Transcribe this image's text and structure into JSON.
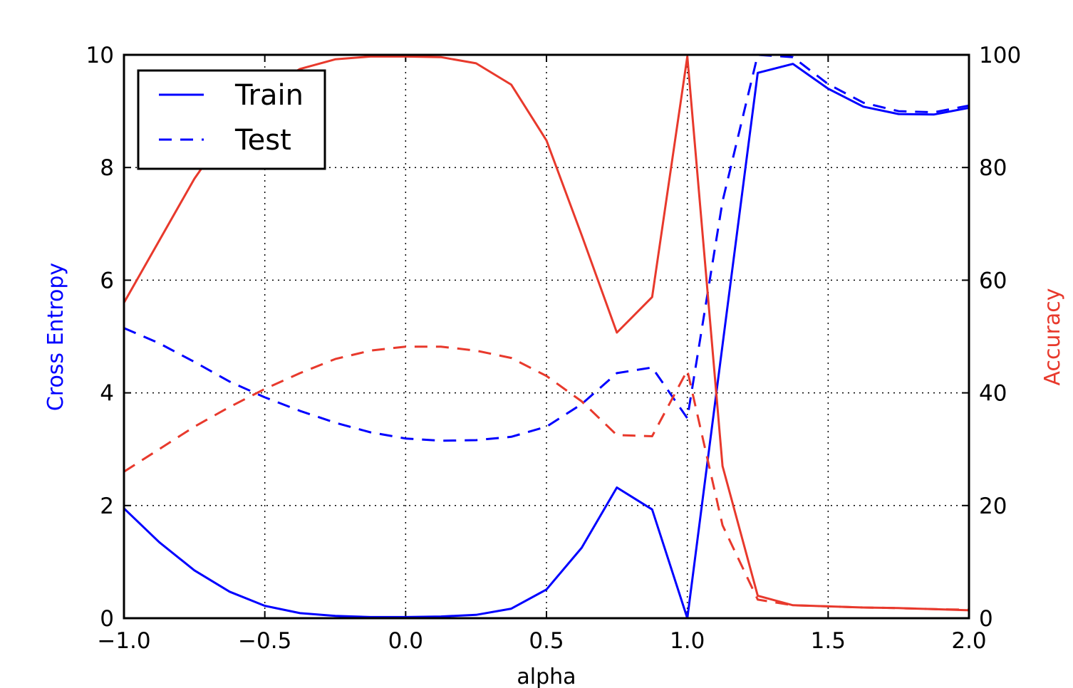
{
  "chart_data": {
    "type": "line",
    "xlabel": "alpha",
    "ylabel_left": "Cross Entropy",
    "ylabel_right": "Accuracy",
    "xlim": [
      -1.0,
      2.0
    ],
    "ylim_left": [
      0,
      10
    ],
    "ylim_right": [
      0,
      100
    ],
    "grid": true,
    "legend_position": "upper-left",
    "x_ticks": [
      "−1.0",
      "−0.5",
      "0.0",
      "0.5",
      "1.0",
      "1.5",
      "2.0"
    ],
    "x_tick_values": [
      -1.0,
      -0.5,
      0.0,
      0.5,
      1.0,
      1.5,
      2.0
    ],
    "y_left_ticks": [
      "0",
      "2",
      "4",
      "6",
      "8",
      "10"
    ],
    "y_left_tick_values": [
      0,
      2,
      4,
      6,
      8,
      10
    ],
    "y_right_ticks": [
      "0",
      "20",
      "40",
      "60",
      "80",
      "100"
    ],
    "y_right_tick_values": [
      0,
      20,
      40,
      60,
      80,
      100
    ],
    "x": [
      -1.0,
      -0.875,
      -0.75,
      -0.625,
      -0.5,
      -0.375,
      -0.25,
      -0.125,
      0.0,
      0.125,
      0.25,
      0.375,
      0.5,
      0.625,
      0.75,
      0.875,
      1.0,
      1.125,
      1.25,
      1.375,
      1.5,
      1.625,
      1.75,
      1.875,
      2.0
    ],
    "colors": {
      "loss": "#0000ff",
      "accuracy": "#e8392c"
    },
    "legend": [
      {
        "label": "Train",
        "style": "solid"
      },
      {
        "label": "Test",
        "style": "dashed"
      }
    ],
    "series": [
      {
        "name": "Train",
        "metric": "Cross Entropy",
        "axis": "left",
        "style": "solid",
        "values": [
          1.95,
          1.35,
          0.85,
          0.47,
          0.22,
          0.09,
          0.04,
          0.02,
          0.02,
          0.03,
          0.06,
          0.17,
          0.51,
          1.25,
          2.32,
          1.93,
          0.0,
          4.85,
          9.68,
          9.84,
          9.4,
          9.08,
          8.95,
          8.94,
          9.06
        ]
      },
      {
        "name": "Test",
        "metric": "Cross Entropy",
        "axis": "left",
        "style": "dashed",
        "values": [
          5.15,
          4.88,
          4.55,
          4.2,
          3.92,
          3.68,
          3.47,
          3.3,
          3.19,
          3.15,
          3.16,
          3.22,
          3.4,
          3.8,
          4.35,
          4.45,
          3.55,
          7.4,
          10.0,
          9.96,
          9.48,
          9.15,
          9.0,
          8.98,
          9.1
        ]
      },
      {
        "name": "Train",
        "metric": "Accuracy",
        "axis": "right",
        "style": "solid",
        "values": [
          56,
          67,
          78,
          87,
          94,
          97.5,
          99.2,
          99.7,
          99.7,
          99.6,
          98.5,
          94.7,
          84.8,
          68,
          50.7,
          57,
          99.7,
          27,
          4.0,
          2.3,
          2.1,
          1.9,
          1.8,
          1.6,
          1.4
        ]
      },
      {
        "name": "Test",
        "metric": "Accuracy",
        "axis": "right",
        "style": "dashed",
        "values": [
          26,
          30,
          34,
          37.5,
          40.7,
          43.5,
          46,
          47.5,
          48.2,
          48.2,
          47.5,
          46.2,
          43,
          38.5,
          32.5,
          32.3,
          44,
          16.5,
          3.3,
          2.3,
          2.1,
          1.9,
          1.8,
          1.6,
          1.5
        ]
      }
    ]
  }
}
